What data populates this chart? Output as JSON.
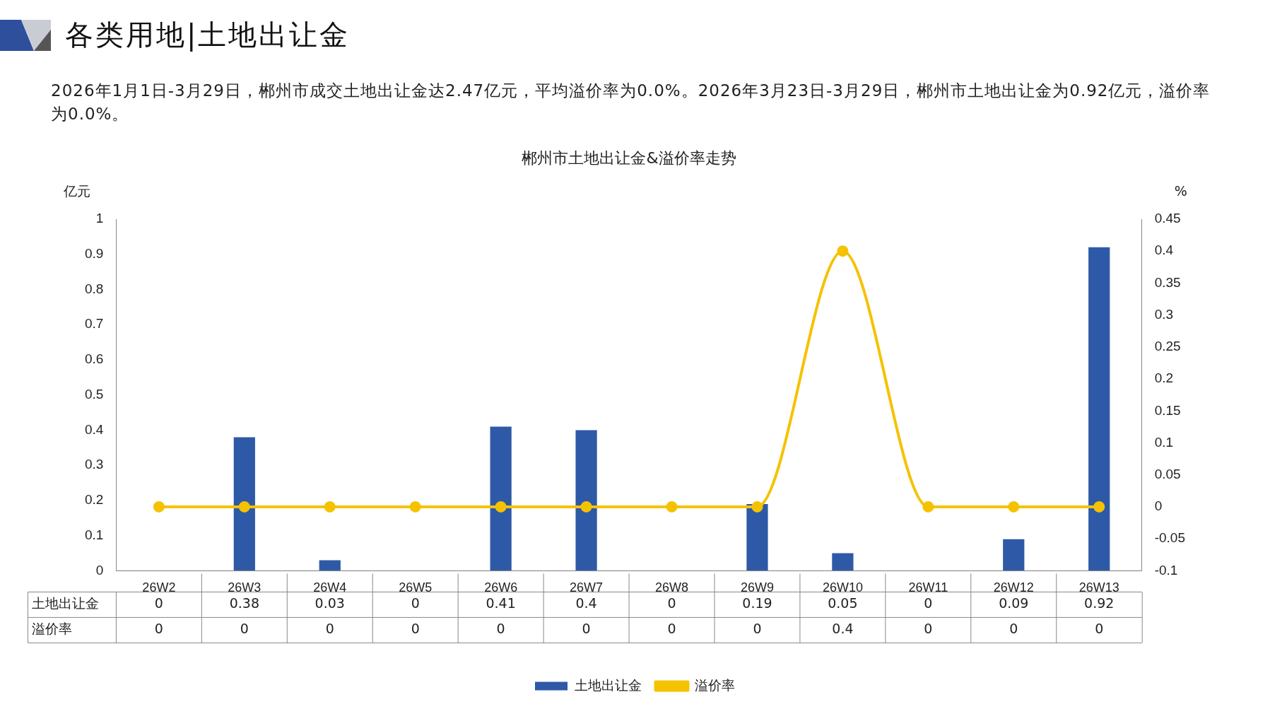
{
  "chart_data": {
    "type": "bar",
    "title": "郴州市土地出让金&溢价率走势",
    "annotations": [
      "各类用地|土地出让金",
      "2026年1月1日-3月29日，郴州市成交土地出让金达2.47亿元，平均溢价率为0.0%。2026年3月23日-3月29日，郴州市土地出让金为0.92亿元，溢价率为0.0%。"
    ],
    "ylabel": "亿元",
    "y2label": "%",
    "categories": [
      "26W2",
      "26W3",
      "26W4",
      "26W5",
      "26W6",
      "26W7",
      "26W8",
      "26W9",
      "26W10",
      "26W11",
      "26W12",
      "26W13"
    ],
    "series": [
      {
        "name": "土地出让金",
        "color": "#2e59a7",
        "values": [
          0,
          0.38,
          0.03,
          0,
          0.41,
          0.4,
          0,
          0.19,
          0.05,
          0,
          0.09,
          0.92
        ]
      },
      {
        "name": "溢价率",
        "type": "line",
        "axis": "y2",
        "color": "#f5c200",
        "values": [
          0,
          0,
          0,
          0,
          0,
          0,
          0,
          0,
          0.4,
          0,
          0,
          0
        ]
      }
    ],
    "ylim": [
      0,
      1
    ],
    "yticks": [
      0,
      0.1,
      0.2,
      0.3,
      0.4,
      0.5,
      0.6,
      0.7,
      0.8,
      0.9,
      1
    ],
    "y2lim": [
      -0.1,
      0.45
    ],
    "y2ticks": [
      -0.1,
      -0.05,
      0,
      0.05,
      0.1,
      0.15,
      0.2,
      0.25,
      0.3,
      0.35,
      0.4,
      0.45
    ],
    "data_labels": true,
    "grid": false,
    "legend": "bottom",
    "marker": "circle",
    "line_style": "solid"
  }
}
